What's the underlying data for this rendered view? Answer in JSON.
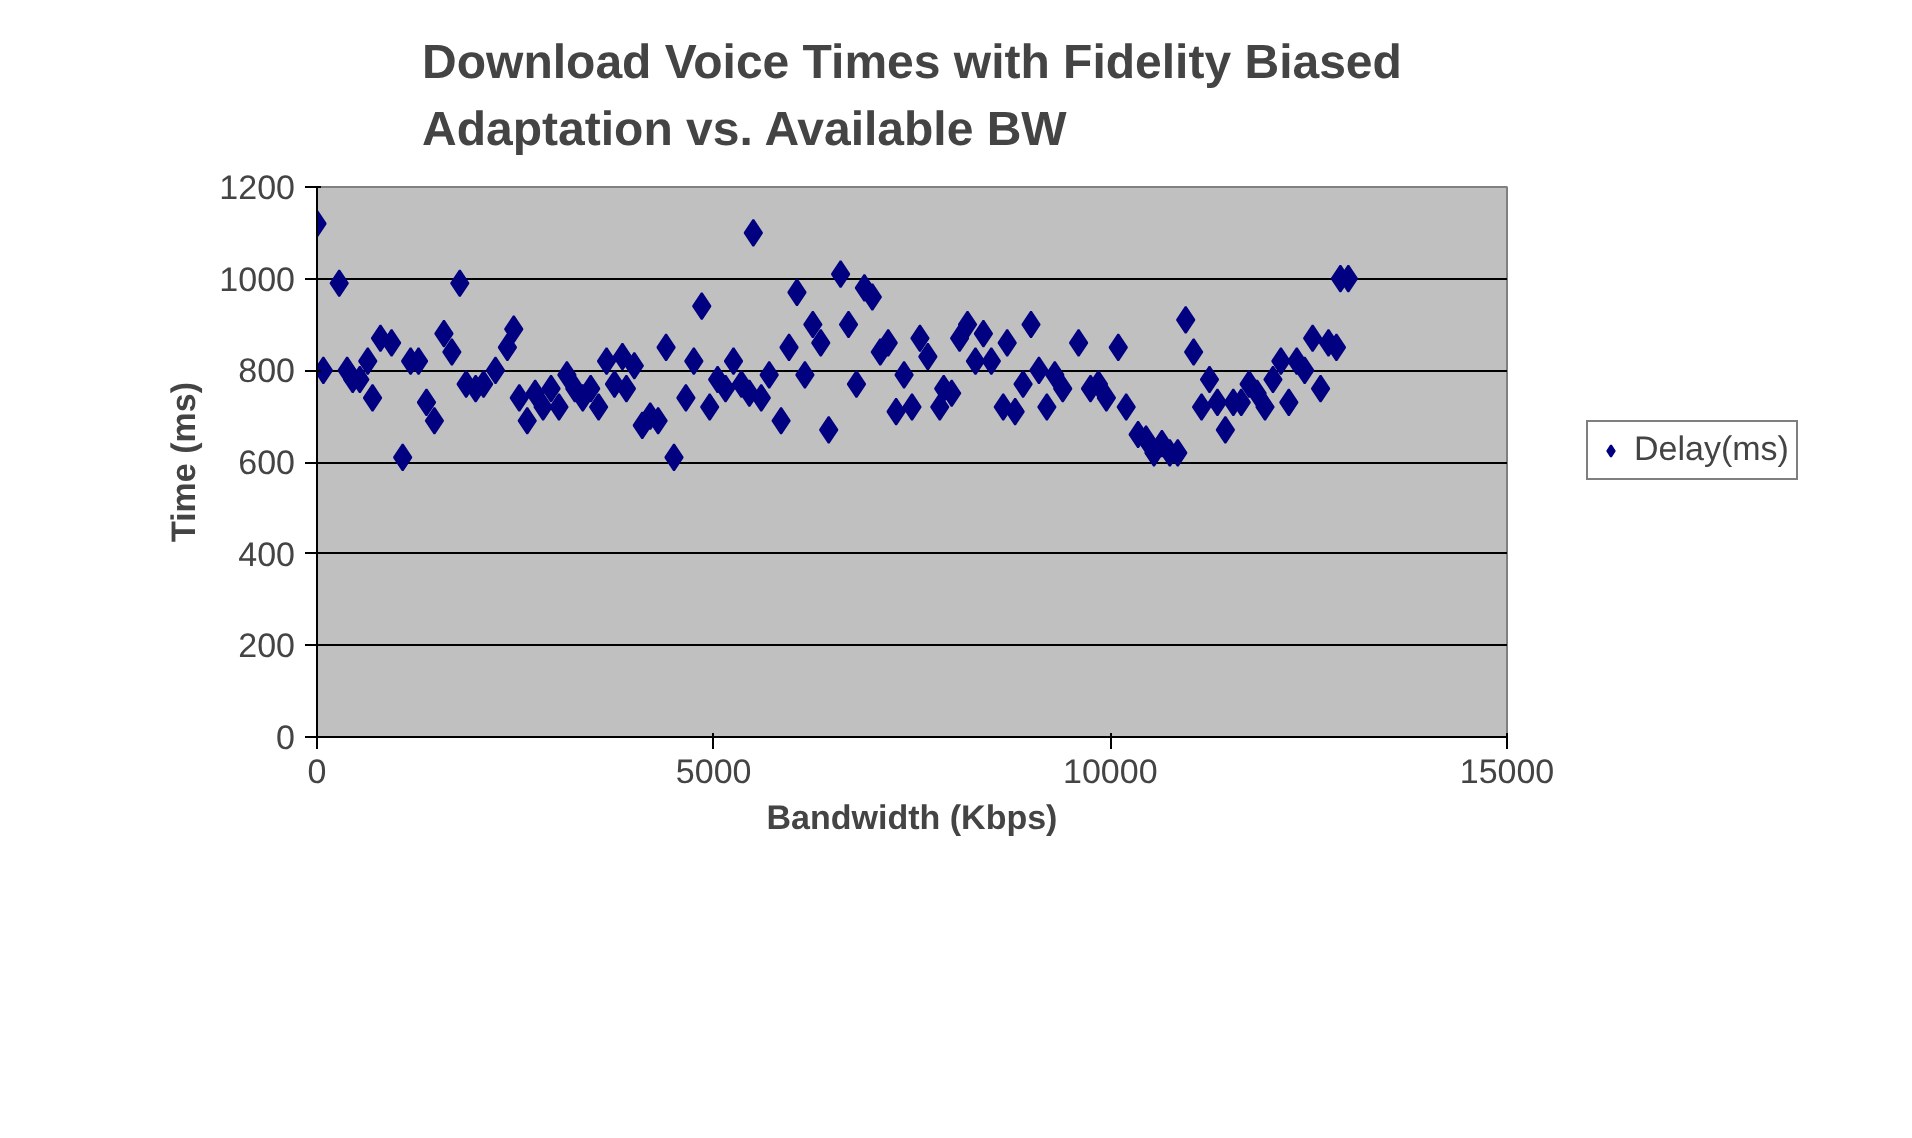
{
  "chart_data": {
    "type": "scatter",
    "title": "Download Voice Times with Fidelity Biased\nAdaptation vs. Available BW",
    "xlabel": "Bandwidth (Kbps)",
    "ylabel": "Time (ms)",
    "xlim": [
      0,
      15000
    ],
    "xticks": [
      0,
      5000,
      10000,
      15000
    ],
    "ylim": [
      0,
      1200
    ],
    "yticks": [
      0,
      200,
      400,
      600,
      800,
      1000,
      1200
    ],
    "grid": "y",
    "legend": "right",
    "marker": "diamond",
    "series": [
      {
        "name": "Delay(ms)",
        "color": "#000080",
        "x": [
          0,
          80,
          280,
          380,
          450,
          540,
          640,
          700,
          800,
          940,
          1080,
          1180,
          1280,
          1380,
          1480,
          1600,
          1700,
          1800,
          1880,
          2000,
          2100,
          2250,
          2400,
          2480,
          2550,
          2650,
          2750,
          2850,
          2950,
          3050,
          3150,
          3250,
          3350,
          3450,
          3550,
          3650,
          3750,
          3850,
          3900,
          4000,
          4100,
          4200,
          4300,
          4400,
          4500,
          4650,
          4750,
          4850,
          4950,
          5050,
          5150,
          5250,
          5350,
          5450,
          5500,
          5600,
          5700,
          5850,
          5950,
          6050,
          6150,
          6250,
          6350,
          6450,
          6600,
          6700,
          6800,
          6900,
          7000,
          7100,
          7200,
          7300,
          7400,
          7500,
          7600,
          7700,
          7850,
          7900,
          8000,
          8100,
          8200,
          8300,
          8400,
          8500,
          8650,
          8700,
          8800,
          8900,
          9000,
          9100,
          9200,
          9300,
          9400,
          9600,
          9750,
          9850,
          9950,
          10100,
          10200,
          10350,
          10450,
          10550,
          10650,
          10750,
          10850,
          10950,
          11050,
          11150,
          11250,
          11350,
          11450,
          11550,
          11650,
          11750,
          11850,
          11950,
          12050,
          12150,
          12250,
          12350,
          12450,
          12550,
          12650,
          12750,
          12850,
          12900,
          13000
        ],
        "values": [
          1120,
          800,
          990,
          800,
          780,
          780,
          820,
          740,
          870,
          860,
          610,
          820,
          820,
          730,
          690,
          880,
          840,
          990,
          770,
          760,
          770,
          800,
          850,
          890,
          740,
          690,
          750,
          720,
          760,
          720,
          790,
          760,
          740,
          760,
          720,
          820,
          770,
          830,
          760,
          810,
          680,
          700,
          690,
          850,
          610,
          740,
          820,
          940,
          720,
          780,
          760,
          820,
          770,
          750,
          1100,
          740,
          790,
          690,
          850,
          970,
          790,
          900,
          860,
          670,
          1010,
          900,
          770,
          980,
          960,
          840,
          860,
          710,
          790,
          720,
          870,
          830,
          720,
          760,
          750,
          870,
          900,
          820,
          880,
          820,
          720,
          860,
          710,
          770,
          900,
          800,
          720,
          790,
          760,
          860,
          760,
          770,
          740,
          850,
          720,
          660,
          650,
          620,
          640,
          620,
          620,
          910,
          840,
          720,
          780,
          730,
          670,
          730,
          730,
          770,
          750,
          720,
          780,
          820,
          730,
          820,
          800,
          870,
          760,
          860,
          850,
          1000,
          1000
        ]
      }
    ]
  }
}
